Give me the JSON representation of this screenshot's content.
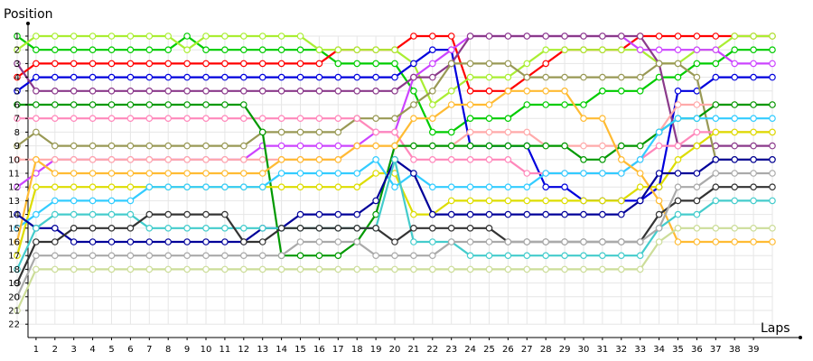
{
  "chart_data": {
    "type": "line",
    "title": "",
    "ylabel": "Position",
    "xlabel": "Laps",
    "x": [
      0,
      1,
      2,
      3,
      4,
      5,
      6,
      7,
      8,
      9,
      10,
      11,
      12,
      13,
      14,
      15,
      16,
      17,
      18,
      19,
      20,
      21,
      22,
      23,
      24,
      25,
      26,
      27,
      28,
      29,
      30,
      31,
      32,
      33,
      34,
      35,
      36,
      37,
      38,
      39,
      40
    ],
    "xticks": [
      1,
      2,
      3,
      4,
      5,
      6,
      7,
      8,
      9,
      10,
      11,
      12,
      13,
      14,
      15,
      16,
      17,
      18,
      19,
      20,
      21,
      22,
      23,
      24,
      25,
      26,
      27,
      28,
      29,
      30,
      31,
      32,
      33,
      34,
      35,
      36,
      37,
      38,
      39
    ],
    "yticks": [
      1,
      2,
      3,
      4,
      5,
      6,
      7,
      8,
      9,
      10,
      11,
      12,
      13,
      14,
      15,
      16,
      17,
      18,
      19,
      20,
      21,
      22
    ],
    "ylim": [
      1,
      22
    ],
    "ydirection": "inverted",
    "grid": true,
    "series": [
      {
        "color": "#00cc00",
        "values": [
          1,
          2,
          2,
          2,
          2,
          2,
          2,
          2,
          2,
          1,
          2,
          2,
          2,
          2,
          2,
          2,
          2,
          3,
          3,
          3,
          3,
          5,
          8,
          8,
          7,
          7,
          7,
          6,
          6,
          6,
          6,
          5,
          5,
          5,
          4,
          4,
          3,
          3,
          2,
          2,
          2
        ]
      },
      {
        "color": "#ff0000",
        "values": [
          4,
          3,
          3,
          3,
          3,
          3,
          3,
          3,
          3,
          3,
          3,
          3,
          3,
          3,
          3,
          3,
          3,
          2,
          2,
          2,
          2,
          1,
          1,
          1,
          5,
          5,
          5,
          4,
          3,
          2,
          2,
          2,
          2,
          1,
          1,
          1,
          1,
          1,
          1,
          1,
          1
        ]
      },
      {
        "color": "#aaee33",
        "values": [
          2,
          1,
          1,
          1,
          1,
          1,
          1,
          1,
          1,
          2,
          1,
          1,
          1,
          1,
          1,
          1,
          2,
          2,
          2,
          2,
          2,
          3,
          6,
          5,
          4,
          4,
          4,
          3,
          2,
          2,
          2,
          2,
          2,
          2,
          3,
          3,
          2,
          2,
          1,
          1,
          1
        ]
      },
      {
        "color": "#0000dd",
        "values": [
          5,
          4,
          4,
          4,
          4,
          4,
          4,
          4,
          4,
          4,
          4,
          4,
          4,
          4,
          4,
          4,
          4,
          4,
          4,
          4,
          4,
          3,
          2,
          2,
          9,
          9,
          9,
          9,
          12,
          12,
          13,
          13,
          13,
          13,
          12,
          5,
          5,
          4,
          4,
          4,
          4
        ]
      },
      {
        "color": "#cc44ff",
        "values": [
          12,
          11,
          10,
          10,
          10,
          10,
          10,
          10,
          10,
          10,
          10,
          10,
          10,
          9,
          9,
          9,
          9,
          9,
          9,
          8,
          8,
          4,
          3,
          2,
          1,
          1,
          1,
          1,
          1,
          1,
          1,
          1,
          1,
          2,
          2,
          2,
          2,
          2,
          3,
          3,
          3
        ]
      },
      {
        "color": "#8b3a8b",
        "values": [
          3,
          5,
          5,
          5,
          5,
          5,
          5,
          5,
          5,
          5,
          5,
          5,
          5,
          5,
          5,
          5,
          5,
          5,
          5,
          5,
          5,
          4,
          4,
          3,
          1,
          1,
          1,
          1,
          1,
          1,
          1,
          1,
          1,
          1,
          3,
          9,
          9,
          9,
          9,
          9,
          9
        ]
      },
      {
        "color": "#999955",
        "values": [
          9,
          8,
          9,
          9,
          9,
          9,
          9,
          9,
          9,
          9,
          9,
          9,
          9,
          8,
          8,
          8,
          8,
          8,
          7,
          7,
          7,
          6,
          5,
          3,
          3,
          3,
          3,
          4,
          4,
          4,
          4,
          4,
          4,
          4,
          3,
          3,
          4,
          10,
          10,
          10,
          10
        ]
      },
      {
        "color": "#ffaaaa",
        "values": [
          10,
          10,
          10,
          10,
          10,
          10,
          10,
          10,
          10,
          10,
          10,
          10,
          10,
          10,
          10,
          10,
          10,
          10,
          9,
          9,
          9,
          9,
          9,
          9,
          8,
          8,
          8,
          8,
          9,
          9,
          9,
          9,
          9,
          9,
          8,
          6,
          6,
          6,
          6,
          6,
          6
        ]
      },
      {
        "color": "#ff88bb",
        "values": [
          7,
          7,
          7,
          7,
          7,
          7,
          7,
          7,
          7,
          7,
          7,
          7,
          7,
          7,
          7,
          7,
          7,
          7,
          7,
          8,
          8,
          10,
          10,
          10,
          10,
          10,
          10,
          11,
          11,
          11,
          11,
          11,
          11,
          10,
          9,
          9,
          8,
          8,
          8,
          8,
          8
        ]
      },
      {
        "color": "#009900",
        "values": [
          6,
          6,
          6,
          6,
          6,
          6,
          6,
          6,
          6,
          6,
          6,
          6,
          6,
          8,
          17,
          17,
          17,
          17,
          16,
          14,
          9,
          9,
          9,
          9,
          9,
          9,
          9,
          9,
          9,
          9,
          10,
          10,
          9,
          9,
          8,
          7,
          7,
          6,
          6,
          6,
          6
        ]
      },
      {
        "color": "#dddd00",
        "values": [
          17,
          12,
          12,
          12,
          12,
          12,
          12,
          12,
          12,
          12,
          12,
          12,
          12,
          12,
          12,
          12,
          12,
          12,
          12,
          11,
          11,
          14,
          14,
          13,
          13,
          13,
          13,
          13,
          13,
          13,
          13,
          13,
          13,
          12,
          12,
          10,
          9,
          8,
          8,
          8,
          8
        ]
      },
      {
        "color": "#33ccff",
        "values": [
          15,
          14,
          13,
          13,
          13,
          13,
          13,
          12,
          12,
          12,
          12,
          12,
          12,
          12,
          11,
          11,
          11,
          11,
          11,
          10,
          12,
          11,
          12,
          12,
          12,
          12,
          12,
          12,
          11,
          11,
          11,
          11,
          11,
          10,
          8,
          7,
          7,
          7,
          7,
          7,
          7
        ]
      },
      {
        "color": "#ffbb33",
        "values": [
          16,
          10,
          11,
          11,
          11,
          11,
          11,
          11,
          11,
          11,
          11,
          11,
          11,
          11,
          10,
          10,
          10,
          10,
          9,
          9,
          9,
          7,
          7,
          6,
          6,
          6,
          5,
          5,
          5,
          5,
          7,
          7,
          10,
          11,
          13,
          16,
          16,
          16,
          16,
          16,
          16
        ]
      },
      {
        "color": "#000099",
        "values": [
          14,
          15,
          15,
          16,
          16,
          16,
          16,
          16,
          16,
          16,
          16,
          16,
          16,
          15,
          15,
          14,
          14,
          14,
          14,
          13,
          10,
          11,
          14,
          14,
          14,
          14,
          14,
          14,
          14,
          14,
          14,
          14,
          14,
          13,
          11,
          11,
          11,
          10,
          10,
          10,
          10
        ]
      },
      {
        "color": "#44cccc",
        "values": [
          18,
          15,
          14,
          14,
          14,
          14,
          14,
          15,
          15,
          15,
          15,
          15,
          15,
          15,
          15,
          15,
          15,
          15,
          15,
          15,
          10,
          16,
          16,
          16,
          17,
          17,
          17,
          17,
          17,
          17,
          17,
          17,
          17,
          17,
          15,
          14,
          14,
          13,
          13,
          13,
          13
        ]
      },
      {
        "color": "#333333",
        "values": [
          19,
          16,
          16,
          15,
          15,
          15,
          15,
          14,
          14,
          14,
          14,
          14,
          16,
          16,
          15,
          15,
          15,
          15,
          15,
          15,
          16,
          15,
          15,
          15,
          15,
          15,
          16,
          16,
          16,
          16,
          16,
          16,
          16,
          16,
          14,
          13,
          13,
          12,
          12,
          12,
          12
        ]
      },
      {
        "color": "#aaaaaa",
        "values": [
          20,
          17,
          17,
          17,
          17,
          17,
          17,
          17,
          17,
          17,
          17,
          17,
          17,
          17,
          17,
          16,
          16,
          16,
          16,
          17,
          17,
          17,
          17,
          16,
          16,
          16,
          16,
          16,
          16,
          16,
          16,
          16,
          16,
          16,
          15,
          12,
          12,
          11,
          11,
          11,
          11
        ]
      },
      {
        "color": "#ccdd99",
        "values": [
          21,
          18,
          18,
          18,
          18,
          18,
          18,
          18,
          18,
          18,
          18,
          18,
          18,
          18,
          18,
          18,
          18,
          18,
          18,
          18,
          18,
          18,
          18,
          18,
          18,
          18,
          18,
          18,
          18,
          18,
          18,
          18,
          18,
          18,
          16,
          15,
          15,
          15,
          15,
          15,
          15
        ]
      }
    ]
  }
}
